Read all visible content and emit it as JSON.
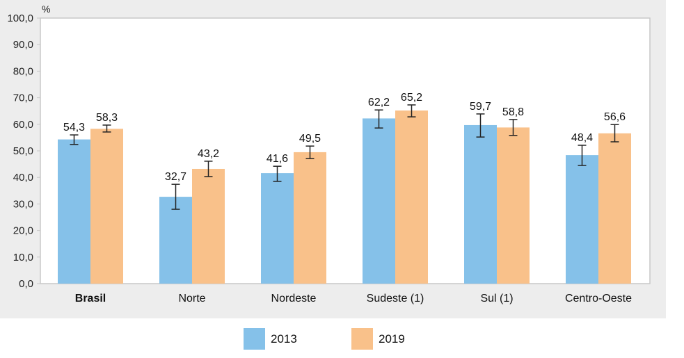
{
  "chart_data": {
    "type": "bar",
    "ylabel": "%",
    "ylim": [
      0,
      100
    ],
    "yticks": [
      "0,0",
      "10,0",
      "20,0",
      "30,0",
      "40,0",
      "50,0",
      "60,0",
      "70,0",
      "80,0",
      "90,0",
      "100,0"
    ],
    "categories": [
      "Brasil",
      "Norte",
      "Nordeste",
      "Sudeste (1)",
      "Sul (1)",
      "Centro-Oeste"
    ],
    "bold_categories": [
      "Brasil"
    ],
    "grid": false,
    "legend_placement": "bottom",
    "series": [
      {
        "name": "2013",
        "color": "#85c1e9",
        "values": [
          54.3,
          32.7,
          41.6,
          62.2,
          59.7,
          48.4
        ],
        "labels": [
          "54,3",
          "32,7",
          "41,6",
          "62,2",
          "59,7",
          "48,4"
        ],
        "ci_low": [
          52.4,
          28.0,
          38.5,
          58.6,
          55.2,
          44.5
        ],
        "ci_high": [
          56.0,
          37.4,
          44.2,
          65.4,
          63.9,
          52.1
        ]
      },
      {
        "name": "2019",
        "color": "#f9c18a",
        "values": [
          58.3,
          43.2,
          49.5,
          65.2,
          58.8,
          56.6
        ],
        "labels": [
          "58,3",
          "43,2",
          "49,5",
          "65,2",
          "58,8",
          "56,6"
        ],
        "ci_low": [
          57.1,
          40.3,
          47.1,
          62.8,
          55.8,
          53.4
        ],
        "ci_high": [
          59.7,
          46.1,
          51.8,
          67.3,
          61.8,
          59.9
        ]
      }
    ]
  }
}
